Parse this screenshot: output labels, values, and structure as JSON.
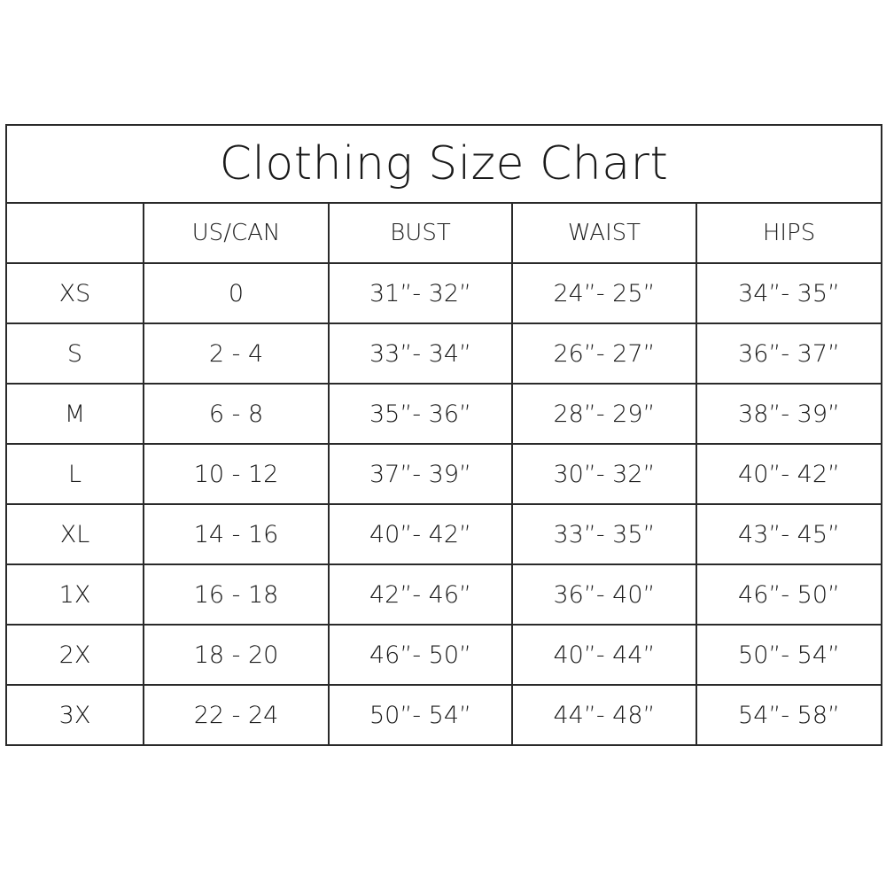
{
  "title": "Clothing Size Chart",
  "headers": [
    "",
    "US/CAN",
    "BUST",
    "WAIST",
    "HIPS"
  ],
  "rows": [
    [
      "XS",
      "0",
      "31”- 32”",
      "24”- 25”",
      "34”- 35”"
    ],
    [
      "S",
      "2 - 4",
      "33”- 34”",
      "26”- 27”",
      "36”- 37”"
    ],
    [
      "M",
      "6 - 8",
      "35”- 36”",
      "28”- 29”",
      "38”- 39”"
    ],
    [
      "L",
      "10 - 12",
      "37”- 39”",
      "30”- 32”",
      "40”- 42”"
    ],
    [
      "XL",
      "14 - 16",
      "40”- 42”",
      "33”- 35”",
      "43”- 45”"
    ],
    [
      "1X",
      "16 - 18",
      "42”- 46”",
      "36”- 40”",
      "46”- 50”"
    ],
    [
      "2X",
      "18 - 20",
      "46”- 50”",
      "40”- 44”",
      "50”- 54”"
    ],
    [
      "3X",
      "22 - 24",
      "50”- 54”",
      "44”- 48”",
      "54”- 58”"
    ]
  ]
}
